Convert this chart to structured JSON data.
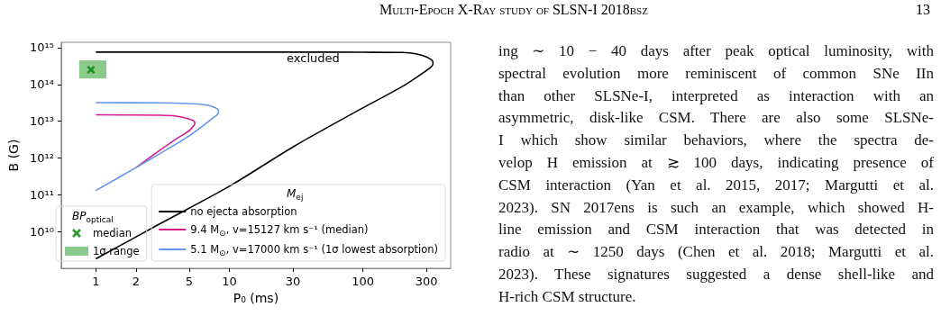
{
  "chart_data": {
    "type": "line",
    "xlabel": "P₀ (ms)",
    "ylabel": "B (G)",
    "log": "xy",
    "xlim": [
      0.55,
      455
    ],
    "ylim": [
      1000000000.0,
      1400000000000000.0
    ],
    "xticks": [
      1,
      2,
      5,
      10,
      30,
      100,
      300
    ],
    "yticks": [
      {
        "value": 10000000000.0,
        "label": "10¹⁰"
      },
      {
        "value": 100000000000.0,
        "label": "10¹¹"
      },
      {
        "value": 1000000000000.0,
        "label": "10¹²"
      },
      {
        "value": 10000000000000.0,
        "label": "10¹³"
      },
      {
        "value": 100000000000000.0,
        "label": "10¹⁴"
      },
      {
        "value": 1000000000000000.0,
        "label": "10¹⁵"
      }
    ],
    "legend": "bottom",
    "legend_title": [
      "BP$_{optical}$",
      "M$_{ej}$"
    ],
    "series": [
      {
        "name": "median",
        "type": "scatter",
        "color": "#008000",
        "marker": "cross",
        "x": [
          0.92
        ],
        "values": [
          250000000000000.0
        ]
      },
      {
        "name": "1σ range",
        "type": "area",
        "color": "#8cc98c",
        "x": [
          0.75,
          1.2
        ],
        "values": [
          null,
          null
        ],
        "lower": [
          145000000000000.0,
          145000000000000.0
        ],
        "upper": [
          450000000000000.0,
          450000000000000.0
        ]
      },
      {
        "name": "no ejecta absorption",
        "color": "#000000",
        "x": [
          1,
          30,
          100,
          200,
          250,
          300,
          330,
          336,
          330,
          300,
          200,
          100,
          30,
          10,
          3,
          1
        ],
        "values": [
          760000000000000.0,
          760000000000000.0,
          750000000000000.0,
          740000000000000.0,
          680000000000000.0,
          560000000000000.0,
          450000000000000.0,
          390000000000000.0,
          320000000000000.0,
          240000000000000.0,
          90000000000000.0,
          23000000000000.0,
          2000000000000.0,
          170000000000.0,
          16000000000.0,
          1800000000.0
        ]
      },
      {
        "name": "9.4 M$_{⊙}$, v=15127 km s⁻¹ (median)",
        "color": "#d81b8c",
        "x": [
          1,
          3,
          4,
          5,
          5.5,
          5.5,
          5.3,
          5,
          4,
          3,
          2
        ],
        "values": [
          15000000000000.0,
          14500000000000.0,
          13800000000000.0,
          11500000000000.0,
          9500000000000.0,
          8300000000000.0,
          7000000000000.0,
          5500000000000.0,
          3300000000000.0,
          1600000000000.0,
          550000000000.0
        ]
      },
      {
        "name": "5.1 M$_{⊙}$, v=17000 km s⁻¹ (1σ lowest absorption)",
        "color": "#6495ed",
        "x": [
          1,
          3,
          6,
          7.5,
          8.3,
          8.1,
          7.5,
          5,
          3,
          2,
          1
        ],
        "values": [
          32000000000000.0,
          31500000000000.0,
          29000000000000.0,
          25000000000000.0,
          19000000000000.0,
          15000000000000.0,
          12000000000000.0,
          4000000000000.0,
          1300000000000.0,
          550000000000.0,
          130000000000.0
        ]
      }
    ],
    "annotations": [
      "excluded",
      "Multi-Epoch X-Ray study of SLSN-I 2018bsz",
      "13",
      "ing ∼ 10 − 40 days after peak optical luminosity, with\nspectral evolution more reminiscent of common SNe IIn\nthan other SLSNe-I, interpreted as interaction with an\nasymmetric, disk-like CSM. There are also some SLSNe-\nI which show similar behaviors, where the spectra de-\nvelop H emission at ≳ 100 days, indicating presence of\nCSM interaction (Yan et al. 2015, 2017; Margutti et al.\n2023). SN 2017ens is such an example, which showed H-\nline emission and CSM interaction that was detected in\nradio at ∼ 1250 days (Chen et al. 2018; Margutti et al.\n2023). These signatures suggested a dense shell-like and\nH-rich CSM structure."
    ]
  }
}
